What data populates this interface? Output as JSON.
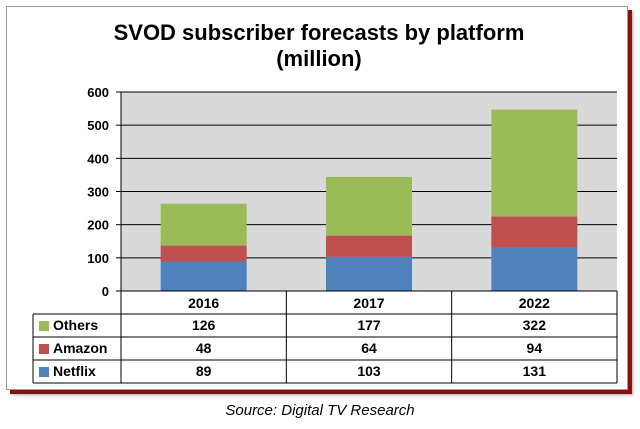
{
  "chart_data": {
    "type": "bar",
    "stacked": true,
    "title_lines": [
      "SVOD subscriber forecasts by platform",
      "(million)"
    ],
    "categories": [
      "2016",
      "2017",
      "2022"
    ],
    "series": [
      {
        "name": "Netflix",
        "values": [
          89,
          103,
          131
        ],
        "values_text": [
          "89",
          "103",
          "131"
        ],
        "color": "#4f81bd"
      },
      {
        "name": "Amazon",
        "values": [
          48,
          64,
          94
        ],
        "values_text": [
          "48",
          "64",
          "94"
        ],
        "color": "#c0504d"
      },
      {
        "name": "Others",
        "values": [
          126,
          177,
          322
        ],
        "values_text": [
          "126",
          "177",
          "322"
        ],
        "color": "#9bbb59"
      }
    ],
    "table_order": [
      "Others",
      "Amazon",
      "Netflix"
    ],
    "ylim": [
      0,
      600
    ],
    "yticks": [
      0,
      100,
      200,
      300,
      400,
      500,
      600
    ],
    "ytick_labels": [
      "0",
      "100",
      "200",
      "300",
      "400",
      "500",
      "600"
    ],
    "grid": true,
    "plot_background": "#d9d9d9",
    "source": "Source: Digital TV Research"
  }
}
